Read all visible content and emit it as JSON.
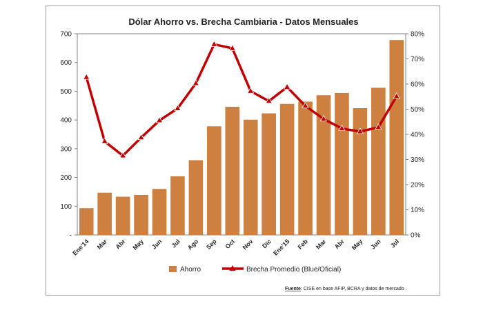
{
  "chart_data": {
    "type": "bar+line",
    "title": "Dólar Ahorro vs. Brecha Cambiaria  - Datos Mensuales",
    "categories": [
      "Ene'14",
      "Mar",
      "Abr",
      "May",
      "Jun",
      "Jul",
      "Ago",
      "Sep",
      "Oct",
      "Nov",
      "Dic",
      "Ene'15",
      "Feb",
      "Mar",
      "Abr",
      "May",
      "Jun",
      "Jul"
    ],
    "series": [
      {
        "name": "Ahorro",
        "type": "bar",
        "axis": "left",
        "color": "#CD8040",
        "values": [
          93,
          147,
          133,
          139,
          160,
          204,
          260,
          378,
          446,
          401,
          423,
          456,
          464,
          486,
          494,
          441,
          512,
          678
        ]
      },
      {
        "name": "Brecha Promedio (Blue/Oficial)",
        "type": "line",
        "axis": "right",
        "color": "#C00000",
        "values": [
          62.7,
          37.2,
          31.5,
          38.7,
          45.5,
          50.3,
          60.3,
          75.8,
          74.2,
          57.2,
          53.2,
          58.8,
          51.3,
          46.1,
          42.3,
          41.1,
          42.8,
          55.1
        ]
      }
    ],
    "y_left": {
      "ylim": [
        0,
        700
      ],
      "ticks": [
        "-",
        "100",
        "200",
        "300",
        "400",
        "500",
        "600",
        "700"
      ]
    },
    "y_right": {
      "ylim": [
        0,
        80
      ],
      "ticks": [
        "0%",
        "10%",
        "20%",
        "30%",
        "40%",
        "50%",
        "60%",
        "70%",
        "80%"
      ]
    },
    "grid": false,
    "legend": "bottom",
    "source": {
      "label": "Fuente",
      "text": ": CISE en base AFIP, BCRA y datos     de mercado ."
    }
  }
}
